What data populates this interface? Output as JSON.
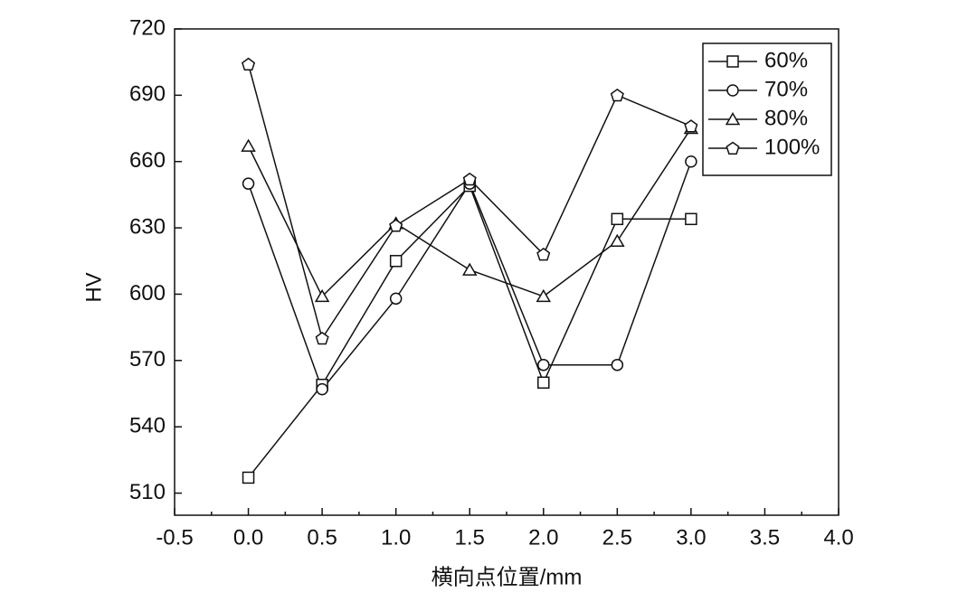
{
  "chart_data": {
    "type": "line",
    "x_label": "横向点位置/mm",
    "y_label": "HV",
    "x": [
      0,
      0.5,
      1,
      1.5,
      2,
      2.5,
      3
    ],
    "series": [
      {
        "name": "60%",
        "marker": "square",
        "color": "#111111",
        "values": [
          517,
          559,
          615,
          649,
          560,
          634,
          634
        ]
      },
      {
        "name": "70%",
        "marker": "circle",
        "color": "#111111",
        "values": [
          650,
          557,
          598,
          650,
          568,
          568,
          660
        ]
      },
      {
        "name": "80%",
        "marker": "triangle",
        "color": "#111111",
        "values": [
          667,
          599,
          632,
          611,
          599,
          624,
          675
        ]
      },
      {
        "name": "100%",
        "marker": "pentagon",
        "color": "#111111",
        "values": [
          704,
          580,
          631,
          652,
          618,
          690,
          676
        ]
      }
    ],
    "xlim": [
      -0.5,
      4
    ],
    "xticks": [
      -0.5,
      {
        "value": 0,
        "label": "0.0"
      },
      0.5,
      {
        "value": 1,
        "label": "1.0"
      },
      1.5,
      {
        "value": 2,
        "label": "2.0"
      },
      2.5,
      {
        "value": 3,
        "label": "3.0"
      },
      3.5,
      {
        "value": 4,
        "label": "4.0"
      }
    ],
    "ylim": [
      500,
      720
    ],
    "yticks": [
      510,
      540,
      570,
      600,
      630,
      660,
      690,
      720
    ],
    "legend": "top-right"
  }
}
